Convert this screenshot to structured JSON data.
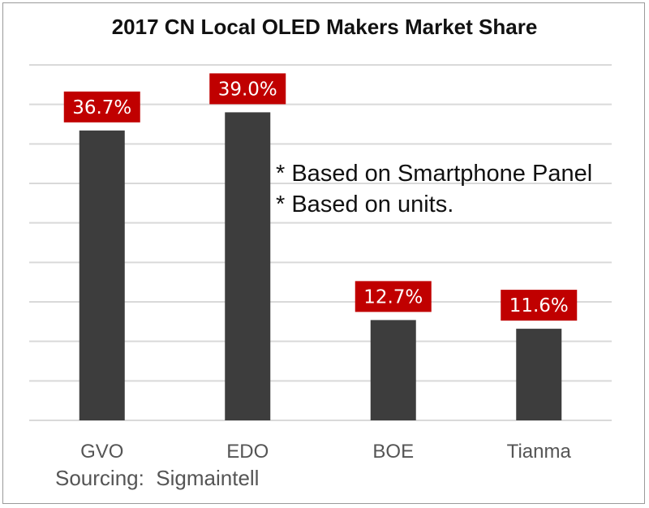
{
  "chart_data": {
    "type": "bar",
    "title": "2017 CN Local OLED Makers Market Share",
    "categories": [
      "GVO",
      "EDO",
      "BOE",
      "Tianma"
    ],
    "values": [
      36.7,
      39.0,
      12.7,
      11.6
    ],
    "data_labels": [
      "36.7%",
      "39.0%",
      "12.7%",
      "11.6%"
    ],
    "xlabel": "",
    "ylabel": "",
    "ylim": [
      0,
      45
    ],
    "grid": true,
    "annotations": [
      "* Based on Smartphone Panel",
      "* Based on units."
    ],
    "source": "Sourcing:  Sigmaintell",
    "colors": {
      "bar": "#3d3d3d",
      "label_box": "#c00000",
      "label_text": "#ffffff",
      "gridline": "#d9d9d9"
    }
  }
}
